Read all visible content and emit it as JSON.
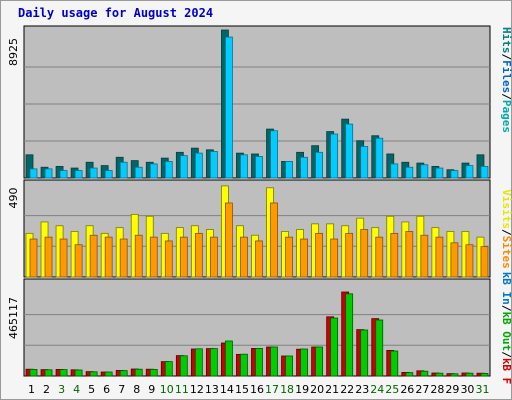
{
  "title": "Daily usage for August 2024",
  "colors": {
    "hits": "#006666",
    "files": "#00ccff",
    "pages": "#008888",
    "visits": "#ffff00",
    "sites": "#ff9900",
    "kb_out": "#66cccc",
    "kb_in": "#00cc00",
    "kb_f": "#cc0000",
    "panel_bg": "#bebebe",
    "weekday": "#000000",
    "weekend": "#006600"
  },
  "legend": {
    "top_group": [
      {
        "key": "pages",
        "label": "Pages",
        "color": "#00aaaa"
      },
      {
        "key": "files",
        "label": "Files",
        "color": "#0066cc"
      },
      {
        "key": "hits",
        "label": "Hits",
        "color": "#008080"
      }
    ],
    "mid_group": [
      {
        "key": "sites",
        "label": "Sites",
        "color": "#ff8800"
      },
      {
        "key": "visits",
        "label": "Visits",
        "color": "#e6e600"
      }
    ],
    "bot_group": [
      {
        "key": "kb_f",
        "label": "kB F",
        "color": "#dd0000"
      },
      {
        "key": "kb_out",
        "label": "kB Out",
        "color": "#00aa00"
      },
      {
        "key": "kb_in",
        "label": "kB In",
        "color": "#0077cc"
      }
    ]
  },
  "chart_data": [
    {
      "type": "bar",
      "name": "hits-files",
      "ymax_label": "8925",
      "ylim": [
        0,
        8925
      ],
      "categories": [
        "1",
        "2",
        "3",
        "4",
        "5",
        "6",
        "7",
        "8",
        "9",
        "10",
        "11",
        "12",
        "13",
        "14",
        "15",
        "16",
        "17",
        "18",
        "19",
        "20",
        "21",
        "22",
        "23",
        "24",
        "25",
        "26",
        "27",
        "28",
        "29",
        "30",
        "31"
      ],
      "series": [
        {
          "name": "Hits",
          "values": [
            1400,
            650,
            700,
            600,
            950,
            750,
            1250,
            1050,
            950,
            1200,
            1550,
            1800,
            1700,
            8925,
            1500,
            1450,
            2950,
            1000,
            1550,
            1950,
            2800,
            3550,
            2250,
            2550,
            1450,
            950,
            900,
            700,
            500,
            900,
            1400
          ]
        },
        {
          "name": "Files",
          "values": [
            550,
            550,
            450,
            450,
            600,
            450,
            950,
            650,
            850,
            1000,
            1350,
            1500,
            1600,
            8500,
            1400,
            1300,
            2850,
            1000,
            1250,
            1550,
            2650,
            3250,
            1900,
            2400,
            850,
            650,
            800,
            600,
            450,
            750,
            700
          ]
        }
      ]
    },
    {
      "type": "bar",
      "name": "visits-sites",
      "ymax_label": "490",
      "ylim": [
        0,
        490
      ],
      "categories": [
        "1",
        "2",
        "3",
        "4",
        "5",
        "6",
        "7",
        "8",
        "9",
        "10",
        "11",
        "12",
        "13",
        "14",
        "15",
        "16",
        "17",
        "18",
        "19",
        "20",
        "21",
        "22",
        "23",
        "24",
        "25",
        "26",
        "27",
        "28",
        "29",
        "30",
        "31"
      ],
      "series": [
        {
          "name": "Visits",
          "values": [
            230,
            290,
            270,
            240,
            270,
            230,
            260,
            330,
            320,
            230,
            260,
            270,
            250,
            480,
            270,
            220,
            470,
            240,
            250,
            280,
            280,
            270,
            310,
            260,
            320,
            290,
            320,
            260,
            240,
            240,
            210
          ]
        },
        {
          "name": "Sites",
          "values": [
            200,
            210,
            200,
            170,
            220,
            210,
            200,
            220,
            210,
            190,
            210,
            230,
            210,
            390,
            210,
            190,
            390,
            210,
            200,
            230,
            200,
            230,
            250,
            210,
            230,
            240,
            220,
            210,
            180,
            170,
            160
          ]
        }
      ]
    },
    {
      "type": "bar",
      "name": "kbytes",
      "ymax_label": "465117",
      "ylim": [
        0,
        465117
      ],
      "categories": [
        "1",
        "2",
        "3",
        "4",
        "5",
        "6",
        "7",
        "8",
        "9",
        "10",
        "11",
        "12",
        "13",
        "14",
        "15",
        "16",
        "17",
        "18",
        "19",
        "20",
        "21",
        "22",
        "23",
        "24",
        "25",
        "26",
        "27",
        "28",
        "29",
        "30",
        "31"
      ],
      "series": [
        {
          "name": "kB F",
          "values": [
            34000,
            32000,
            33000,
            31000,
            22000,
            20000,
            28000,
            35000,
            34000,
            72000,
            102000,
            135000,
            137000,
            165000,
            108000,
            138000,
            145000,
            100000,
            134000,
            145000,
            296000,
            420000,
            232000,
            287000,
            128000,
            18000,
            26000,
            15000,
            12000,
            15000,
            14000
          ]
        },
        {
          "name": "kB Out",
          "values": [
            33000,
            31000,
            32000,
            30000,
            21000,
            20000,
            27000,
            34000,
            33000,
            72000,
            101000,
            136000,
            137000,
            175000,
            109000,
            138000,
            145000,
            100000,
            135000,
            145000,
            290000,
            411000,
            230000,
            280000,
            125000,
            17000,
            24000,
            14000,
            11000,
            14000,
            13000
          ]
        }
      ]
    }
  ],
  "weekend_days": [
    3,
    4,
    10,
    11,
    17,
    18,
    24,
    25,
    31
  ]
}
